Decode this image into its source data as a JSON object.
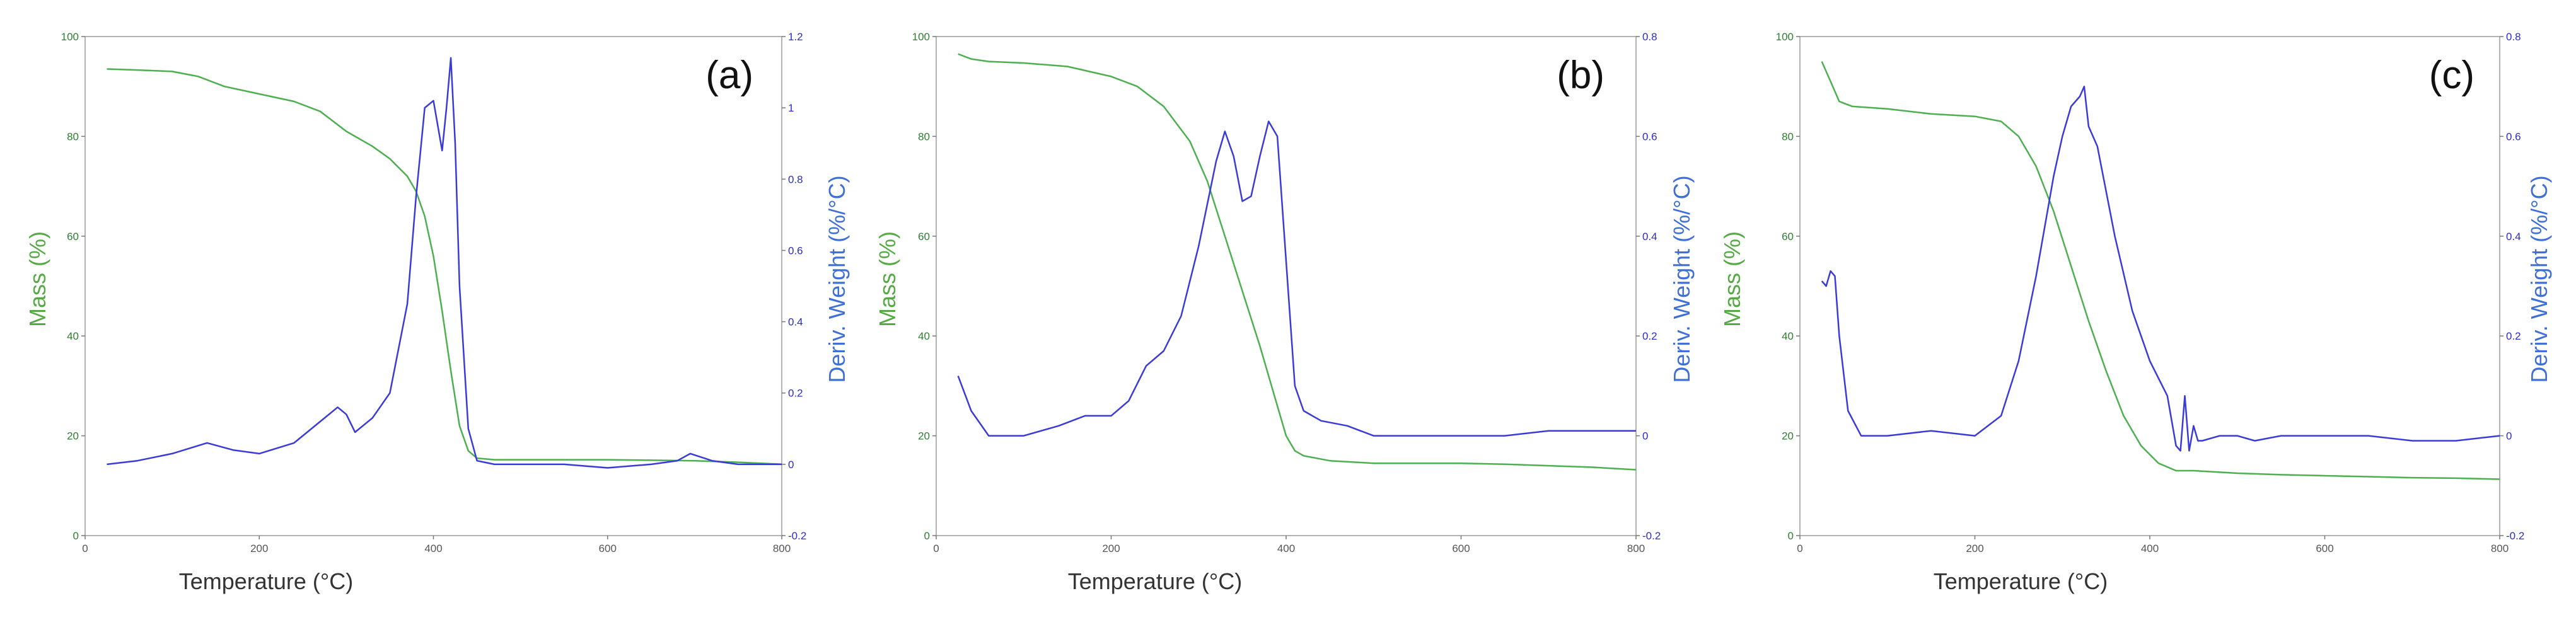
{
  "chart_data": [
    {
      "type": "line",
      "panel_label": "(a)",
      "xlabel": "Temperature (°C)",
      "ylabel": "Mass (%)",
      "y2label": "Deriv. Weight (%/°C)",
      "xlim": [
        0,
        800
      ],
      "ylim": [
        0,
        100
      ],
      "y2lim": [
        -0.2,
        1.2
      ],
      "xticks": [
        0,
        200,
        400,
        600,
        800
      ],
      "yticks": [
        0,
        20,
        40,
        60,
        80,
        100
      ],
      "y2ticks": [
        -0.2,
        0,
        0.2,
        0.4,
        0.6,
        0.8,
        1,
        1.2
      ],
      "grid": false,
      "legend": "none",
      "mass_color": "#4caf50",
      "deriv_color": "#3a3ad8",
      "mass": {
        "x": [
          25,
          60,
          100,
          130,
          160,
          200,
          240,
          270,
          300,
          330,
          350,
          370,
          380,
          390,
          400,
          410,
          420,
          430,
          440,
          450,
          470,
          500,
          550,
          600,
          650,
          700,
          750,
          800
        ],
        "y": [
          93.5,
          93.3,
          93,
          92,
          90,
          88.5,
          87,
          85,
          81,
          78,
          75.5,
          72,
          69,
          64,
          56,
          45,
          33,
          22,
          17,
          15.5,
          15.2,
          15.2,
          15.2,
          15.2,
          15.1,
          15,
          14.7,
          14.3
        ]
      },
      "deriv": {
        "x": [
          25,
          60,
          100,
          140,
          170,
          200,
          240,
          270,
          290,
          300,
          310,
          330,
          350,
          370,
          380,
          390,
          400,
          410,
          415,
          420,
          425,
          430,
          440,
          450,
          470,
          500,
          550,
          600,
          650,
          680,
          695,
          720,
          750,
          800
        ],
        "y": [
          0,
          0.01,
          0.03,
          0.06,
          0.04,
          0.03,
          0.06,
          0.12,
          0.16,
          0.14,
          0.09,
          0.13,
          0.2,
          0.45,
          0.75,
          1.0,
          1.02,
          0.88,
          1.0,
          1.14,
          0.9,
          0.5,
          0.1,
          0.01,
          0.0,
          0.0,
          0.0,
          -0.01,
          0.0,
          0.01,
          0.03,
          0.01,
          0.0,
          0.0
        ]
      }
    },
    {
      "type": "line",
      "panel_label": "(b)",
      "xlabel": "Temperature (°C)",
      "ylabel": "Mass (%)",
      "y2label": "Deriv. Weight (%/°C)",
      "xlim": [
        0,
        800
      ],
      "ylim": [
        0,
        100
      ],
      "y2lim": [
        -0.2,
        0.8
      ],
      "xticks": [
        0,
        200,
        400,
        600,
        800
      ],
      "yticks": [
        0,
        20,
        40,
        60,
        80,
        100
      ],
      "y2ticks": [
        -0.2,
        0,
        0.2,
        0.4,
        0.6,
        0.8
      ],
      "grid": false,
      "legend": "none",
      "mass_color": "#4caf50",
      "deriv_color": "#3a3ad8",
      "mass": {
        "x": [
          25,
          40,
          60,
          100,
          150,
          200,
          230,
          260,
          290,
          310,
          330,
          350,
          370,
          390,
          400,
          410,
          420,
          450,
          500,
          550,
          600,
          650,
          700,
          750,
          800
        ],
        "y": [
          96.5,
          95.5,
          95,
          94.7,
          94,
          92,
          90,
          86,
          79,
          71,
          60,
          49,
          38,
          26,
          20,
          17,
          16,
          15,
          14.5,
          14.5,
          14.5,
          14.3,
          14,
          13.7,
          13.2
        ]
      },
      "deriv": {
        "x": [
          25,
          40,
          60,
          100,
          140,
          170,
          200,
          220,
          240,
          260,
          280,
          300,
          320,
          330,
          340,
          350,
          360,
          370,
          380,
          390,
          400,
          410,
          420,
          440,
          470,
          500,
          550,
          600,
          650,
          700,
          750,
          800
        ],
        "y": [
          0.12,
          0.05,
          0.0,
          0.0,
          0.02,
          0.04,
          0.04,
          0.07,
          0.14,
          0.17,
          0.24,
          0.38,
          0.55,
          0.61,
          0.56,
          0.47,
          0.48,
          0.56,
          0.63,
          0.6,
          0.35,
          0.1,
          0.05,
          0.03,
          0.02,
          0.0,
          0.0,
          0.0,
          0.0,
          0.01,
          0.01,
          0.01
        ]
      }
    },
    {
      "type": "line",
      "panel_label": "(c)",
      "xlabel": "Temperature (°C)",
      "ylabel": "Mass (%)",
      "y2label": "Deriv. Weight (%/°C)",
      "xlim": [
        0,
        800
      ],
      "ylim": [
        0,
        100
      ],
      "y2lim": [
        -0.2,
        0.8
      ],
      "xticks": [
        0,
        200,
        400,
        600,
        800
      ],
      "yticks": [
        0,
        20,
        40,
        60,
        80,
        100
      ],
      "y2ticks": [
        -0.2,
        0,
        0.2,
        0.4,
        0.6,
        0.8
      ],
      "grid": false,
      "legend": "none",
      "mass_color": "#4caf50",
      "deriv_color": "#3a3ad8",
      "mass": {
        "x": [
          25,
          35,
          45,
          60,
          100,
          150,
          200,
          230,
          250,
          270,
          290,
          310,
          330,
          350,
          370,
          390,
          410,
          430,
          450,
          500,
          550,
          600,
          650,
          700,
          750,
          800
        ],
        "y": [
          95,
          91,
          87,
          86,
          85.5,
          84.5,
          84,
          83,
          80,
          74,
          65,
          54,
          43,
          33,
          24,
          18,
          14.5,
          13,
          13,
          12.5,
          12.2,
          12,
          11.8,
          11.6,
          11.5,
          11.3
        ]
      },
      "deriv": {
        "x": [
          25,
          30,
          35,
          40,
          45,
          55,
          70,
          100,
          150,
          200,
          230,
          250,
          270,
          290,
          300,
          310,
          320,
          325,
          330,
          340,
          360,
          380,
          400,
          420,
          430,
          435,
          440,
          445,
          450,
          455,
          460,
          480,
          500,
          520,
          550,
          600,
          650,
          700,
          750,
          800
        ],
        "y": [
          0.31,
          0.3,
          0.33,
          0.32,
          0.2,
          0.05,
          0.0,
          0.0,
          0.01,
          0.0,
          0.04,
          0.15,
          0.32,
          0.52,
          0.6,
          0.66,
          0.68,
          0.7,
          0.62,
          0.58,
          0.4,
          0.25,
          0.15,
          0.08,
          -0.02,
          -0.03,
          0.08,
          -0.03,
          0.02,
          -0.01,
          -0.01,
          0.0,
          0.0,
          -0.01,
          0.0,
          0.0,
          0.0,
          -0.01,
          -0.01,
          0.0
        ]
      }
    }
  ]
}
